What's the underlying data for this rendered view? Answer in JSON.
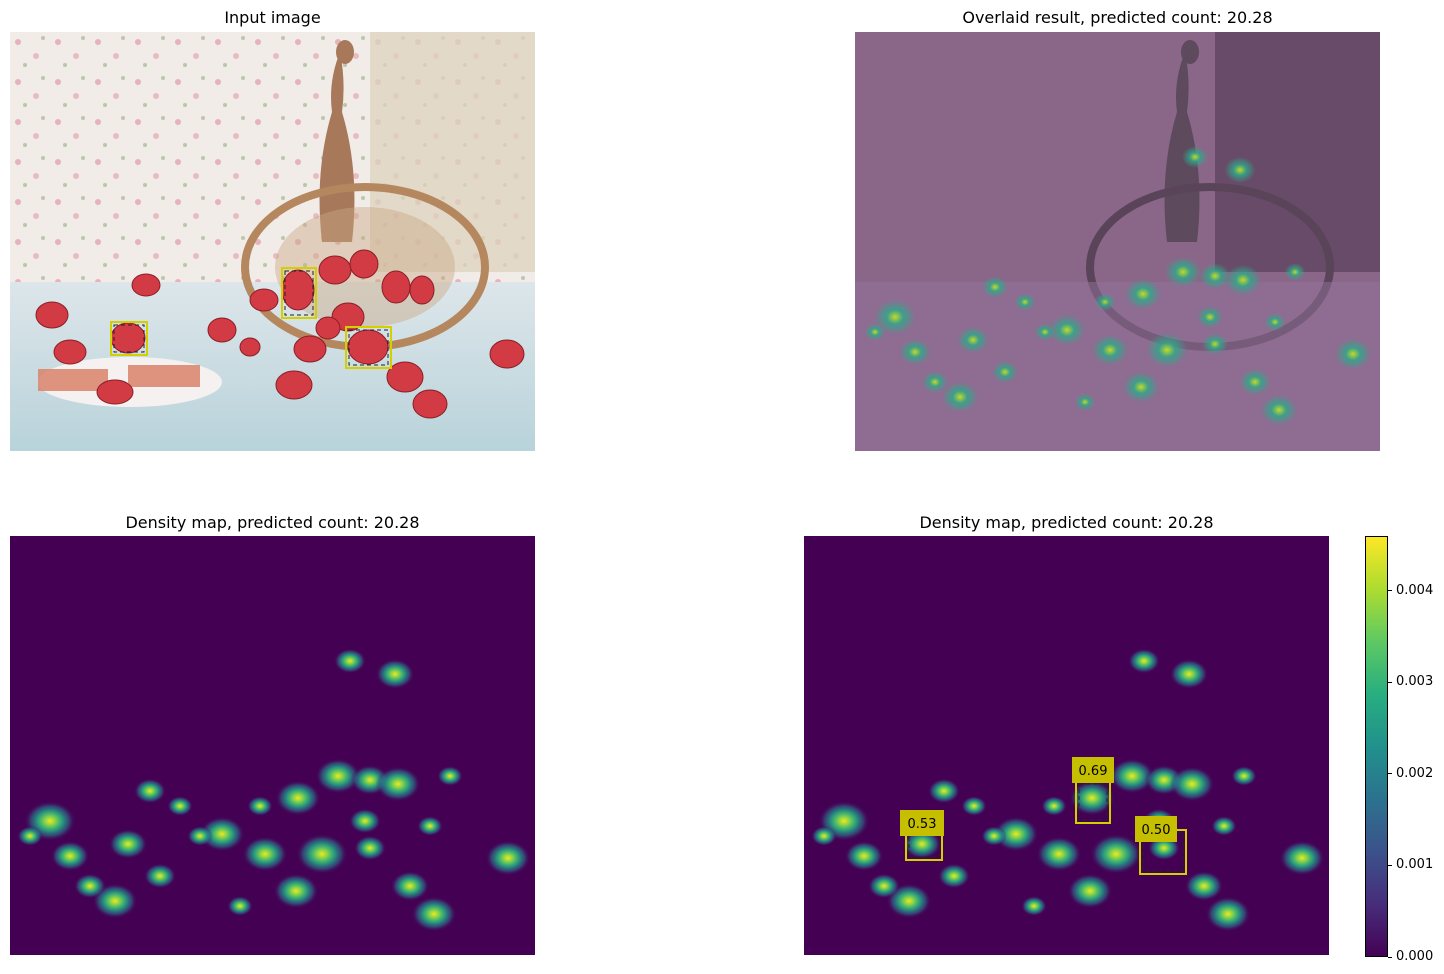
{
  "figure": {
    "panels": [
      {
        "id": "input",
        "title": "Input image"
      },
      {
        "id": "overlay",
        "title": "Overlaid result, predicted count: 20.28"
      },
      {
        "id": "density",
        "title": "Density map, predicted count: 20.28"
      },
      {
        "id": "density-boxes",
        "title": "Density map, predicted count: 20.28"
      }
    ]
  },
  "chart_data": {
    "type": "heatmap",
    "predicted_count": 20.28,
    "colormap": "viridis",
    "colorbar": {
      "vmin": 0.0,
      "vmax": 0.0046,
      "ticks": [
        "0.000",
        "0.001",
        "0.002",
        "0.003",
        "0.004"
      ]
    },
    "exemplar_boxes": [
      {
        "label": "0.53"
      },
      {
        "label": "0.69"
      },
      {
        "label": "0.50"
      }
    ],
    "colors": {
      "box": "#d4d000",
      "label_bg": "#c6bf00",
      "density_bg": "#440154",
      "overlay_tint": "#7a4f7a"
    }
  }
}
